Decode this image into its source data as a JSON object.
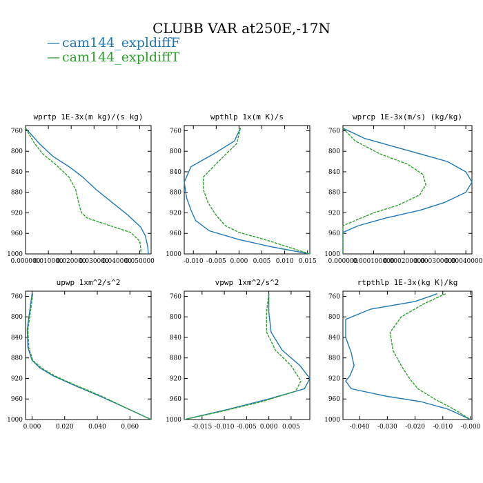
{
  "figure_title": "CLUBB VAR at250E,-17N",
  "colors": {
    "series_f": "#1f77b4",
    "series_t": "#2ca02c"
  },
  "legend": [
    {
      "symbol": "—",
      "label": "cam144_expldiffF"
    },
    {
      "symbol": "—",
      "label": "cam144_expldiffT"
    }
  ],
  "chart_data": [
    {
      "type": "line",
      "title": "wprtp  1E-3x(m kg)/(s kg)",
      "xlim": [
        0.0,
        0.055
      ],
      "ylim": [
        1000,
        750
      ],
      "xticks": [
        0.0,
        0.01,
        0.02,
        0.03,
        0.04,
        0.05
      ],
      "xtick_labels": [
        "0.000000",
        "0.010000",
        "0.020000",
        "0.030000",
        "0.040000",
        "0.050000"
      ],
      "yticks": [
        760,
        800,
        840,
        880,
        920,
        960,
        1000
      ],
      "series": [
        {
          "name": "cam144_expldiffF",
          "style": "solid",
          "points": [
            [
              0.0,
              755
            ],
            [
              0.006,
              785
            ],
            [
              0.012,
              810
            ],
            [
              0.019,
              830
            ],
            [
              0.025,
              850
            ],
            [
              0.031,
              875
            ],
            [
              0.038,
              900
            ],
            [
              0.045,
              925
            ],
            [
              0.0505,
              948
            ],
            [
              0.0525,
              965
            ],
            [
              0.0535,
              985
            ],
            [
              0.0538,
              1000
            ]
          ]
        },
        {
          "name": "cam144_expldiffT",
          "style": "dashed",
          "points": [
            [
              0.0,
              755
            ],
            [
              0.004,
              785
            ],
            [
              0.0075,
              805
            ],
            [
              0.013,
              825
            ],
            [
              0.019,
              850
            ],
            [
              0.022,
              875
            ],
            [
              0.0235,
              905
            ],
            [
              0.0245,
              920
            ],
            [
              0.027,
              930
            ],
            [
              0.037,
              945
            ],
            [
              0.046,
              958
            ],
            [
              0.05,
              975
            ],
            [
              0.0505,
              990
            ],
            [
              0.0505,
              1000
            ]
          ]
        }
      ]
    },
    {
      "type": "line",
      "title": "wpthlp  1x(m K)/s",
      "xlim": [
        -0.012,
        0.0155
      ],
      "ylim": [
        1000,
        750
      ],
      "xticks": [
        -0.01,
        -0.005,
        0.0,
        0.005,
        0.01,
        0.015
      ],
      "xtick_labels": [
        "-0.010",
        "-0.005",
        "0.000",
        "0.005",
        "0.010",
        "0.015"
      ],
      "yticks": [
        760,
        800,
        840,
        880,
        920,
        960,
        1000
      ],
      "series": [
        {
          "name": "cam144_expldiffF",
          "style": "solid",
          "points": [
            [
              0.0003,
              755
            ],
            [
              -0.001,
              780
            ],
            [
              -0.0055,
              805
            ],
            [
              -0.0105,
              830
            ],
            [
              -0.012,
              860
            ],
            [
              -0.0115,
              890
            ],
            [
              -0.0105,
              915
            ],
            [
              -0.0095,
              935
            ],
            [
              -0.0065,
              955
            ],
            [
              0.0,
              972
            ],
            [
              0.007,
              986
            ],
            [
              0.0155,
              1000
            ]
          ]
        },
        {
          "name": "cam144_expldiffT",
          "style": "dashed",
          "points": [
            [
              0.0003,
              755
            ],
            [
              -0.0005,
              785
            ],
            [
              -0.0045,
              820
            ],
            [
              -0.0078,
              850
            ],
            [
              -0.0078,
              875
            ],
            [
              -0.0068,
              900
            ],
            [
              -0.005,
              925
            ],
            [
              -0.003,
              945
            ],
            [
              0.0,
              958
            ],
            [
              0.006,
              973
            ],
            [
              0.012,
              990
            ],
            [
              0.0155,
              1000
            ]
          ]
        }
      ]
    },
    {
      "type": "line",
      "title": "wprcp  1E-3x(m/s) (kg/kg)",
      "xlim": [
        0.0,
        0.00042
      ],
      "ylim": [
        1000,
        750
      ],
      "xticks": [
        0.0,
        0.0001,
        0.0002,
        0.0003,
        0.0004
      ],
      "xtick_labels": [
        "0.000000",
        "0.000100000",
        "0.000200000",
        "0.000300000",
        "0.000400000"
      ],
      "yticks": [
        760,
        800,
        840,
        880,
        920,
        960,
        1000
      ],
      "series": [
        {
          "name": "cam144_expldiffF",
          "style": "solid",
          "points": [
            [
              0.0,
              755
            ],
            [
              7e-05,
              775
            ],
            [
              0.00022,
              800
            ],
            [
              0.00034,
              820
            ],
            [
              0.0004,
              840
            ],
            [
              0.00042,
              860
            ],
            [
              0.0004,
              880
            ],
            [
              0.00033,
              900
            ],
            [
              0.00025,
              915
            ],
            [
              0.00014,
              930
            ],
            [
              5e-05,
              945
            ],
            [
              0.0,
              958
            ],
            [
              0.0,
              1000
            ]
          ]
        },
        {
          "name": "cam144_expldiffT",
          "style": "dashed",
          "points": [
            [
              0.0,
              755
            ],
            [
              4e-05,
              780
            ],
            [
              0.00012,
              805
            ],
            [
              0.00021,
              825
            ],
            [
              0.00026,
              845
            ],
            [
              0.00027,
              865
            ],
            [
              0.00025,
              885
            ],
            [
              0.00018,
              905
            ],
            [
              0.0001,
              920
            ],
            [
              4e-05,
              935
            ],
            [
              0.0,
              945
            ],
            [
              0.0,
              1000
            ]
          ]
        }
      ]
    },
    {
      "type": "line",
      "title": "upwp  1xm^2/s^2",
      "xlim": [
        -0.004,
        0.073
      ],
      "ylim": [
        1000,
        750
      ],
      "xticks": [
        0.0,
        0.02,
        0.04,
        0.06
      ],
      "xtick_labels": [
        "0.000",
        "0.020",
        "0.040",
        "0.060"
      ],
      "yticks": [
        760,
        800,
        840,
        880,
        920,
        960,
        1000
      ],
      "series": [
        {
          "name": "cam144_expldiffF",
          "style": "solid",
          "points": [
            [
              0.0,
              755
            ],
            [
              -0.0015,
              790
            ],
            [
              -0.003,
              825
            ],
            [
              -0.0025,
              860
            ],
            [
              0.0,
              885
            ],
            [
              0.005,
              900
            ],
            [
              0.013,
              915
            ],
            [
              0.027,
              935
            ],
            [
              0.042,
              955
            ],
            [
              0.058,
              978
            ],
            [
              0.073,
              1000
            ]
          ]
        },
        {
          "name": "cam144_expldiffT",
          "style": "dashed",
          "points": [
            [
              0.0005,
              755
            ],
            [
              -0.001,
              790
            ],
            [
              -0.0025,
              825
            ],
            [
              -0.002,
              860
            ],
            [
              0.0005,
              885
            ],
            [
              0.006,
              900
            ],
            [
              0.014,
              915
            ],
            [
              0.028,
              935
            ],
            [
              0.043,
              955
            ],
            [
              0.058,
              978
            ],
            [
              0.073,
              1000
            ]
          ]
        }
      ]
    },
    {
      "type": "line",
      "title": "vpwp  1xm^2/s^2",
      "xlim": [
        -0.019,
        0.0092
      ],
      "ylim": [
        1000,
        750
      ],
      "xticks": [
        -0.015,
        -0.01,
        -0.005,
        0.0,
        0.005
      ],
      "xtick_labels": [
        "-0.015",
        "-0.010",
        "-0.005",
        "0.000",
        "0.005"
      ],
      "yticks": [
        760,
        800,
        840,
        880,
        920,
        960,
        1000
      ],
      "series": [
        {
          "name": "cam144_expldiffF",
          "style": "solid",
          "points": [
            [
              0.0,
              755
            ],
            [
              0.0,
              790
            ],
            [
              0.0005,
              830
            ],
            [
              0.003,
              865
            ],
            [
              0.007,
              895
            ],
            [
              0.0092,
              920
            ],
            [
              0.008,
              940
            ],
            [
              0.0,
              960
            ],
            [
              -0.009,
              980
            ],
            [
              -0.019,
              1000
            ]
          ]
        },
        {
          "name": "cam144_expldiffT",
          "style": "dashed",
          "points": [
            [
              0.0,
              755
            ],
            [
              -0.0005,
              790
            ],
            [
              -0.0005,
              830
            ],
            [
              0.0015,
              865
            ],
            [
              0.005,
              895
            ],
            [
              0.0072,
              925
            ],
            [
              0.006,
              945
            ],
            [
              -0.0015,
              965
            ],
            [
              -0.011,
              985
            ],
            [
              -0.019,
              1000
            ]
          ]
        }
      ]
    },
    {
      "type": "line",
      "title": "rtpthlp  1E-3x(kg K)/kg",
      "xlim": [
        -0.046,
        0.0005
      ],
      "ylim": [
        1000,
        750
      ],
      "xticks": [
        -0.04,
        -0.03,
        -0.02,
        -0.01,
        0.0
      ],
      "xtick_labels": [
        "-0.040",
        "-0.030",
        "-0.020",
        "-0.010",
        "-0.000"
      ],
      "yticks": [
        760,
        800,
        840,
        880,
        920,
        960,
        1000
      ],
      "series": [
        {
          "name": "cam144_expldiffF",
          "style": "solid",
          "points": [
            [
              -0.012,
              755
            ],
            [
              -0.02,
              770
            ],
            [
              -0.036,
              785
            ],
            [
              -0.045,
              805
            ],
            [
              -0.045,
              840
            ],
            [
              -0.043,
              870
            ],
            [
              -0.042,
              895
            ],
            [
              -0.0435,
              915
            ],
            [
              -0.045,
              925
            ],
            [
              -0.043,
              940
            ],
            [
              -0.03,
              955
            ],
            [
              -0.018,
              965
            ],
            [
              -0.008,
              980
            ],
            [
              0.0,
              1000
            ]
          ]
        },
        {
          "name": "cam144_expldiffT",
          "style": "dashed",
          "points": [
            [
              -0.009,
              755
            ],
            [
              -0.017,
              775
            ],
            [
              -0.025,
              800
            ],
            [
              -0.029,
              830
            ],
            [
              -0.028,
              865
            ],
            [
              -0.025,
              895
            ],
            [
              -0.022,
              920
            ],
            [
              -0.019,
              940
            ],
            [
              -0.013,
              960
            ],
            [
              -0.006,
              980
            ],
            [
              0.0,
              1000
            ]
          ]
        }
      ]
    }
  ]
}
